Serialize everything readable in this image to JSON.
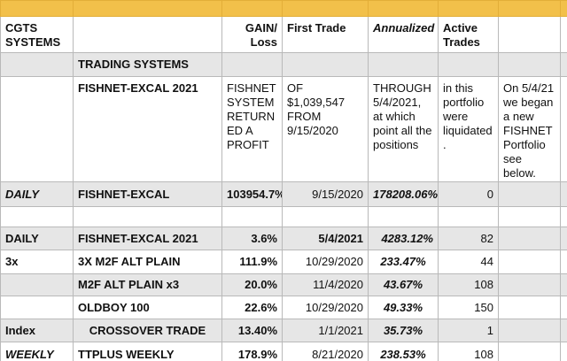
{
  "header": {
    "col_systems": "CGTS SYSTEMS",
    "col_gain": "GAIN/ Loss",
    "col_first_trade": "First Trade",
    "col_annualized": "Annualized",
    "col_active": "Active Trades"
  },
  "section_title": "TRADING SYSTEMS",
  "fishnet_note": {
    "name": "FISHNET-EXCAL 2021",
    "gain": "FISHNET SYSTEM RETURN ED A PROFIT",
    "first_trade": "OF $1,039,547 FROM 9/15/2020",
    "annualized": "THROUGH 5/4/2021, at which point all the positions",
    "active": "in this portfolio were liquidated .",
    "extra": "On 5/4/21 we began a new FISHNET Portfolio see below."
  },
  "rows": [
    {
      "category": "DAILY",
      "system": "FISHNET-EXCAL",
      "gain": "103954.7%",
      "first_trade": "9/15/2020",
      "annualized": "178208.06%",
      "active": "0"
    },
    {
      "category": "DAILY",
      "system": "FISHNET-EXCAL 2021",
      "gain": "3.6%",
      "first_trade": "5/4/2021",
      "annualized": "4283.12%",
      "active": "82"
    },
    {
      "category": "3x",
      "system": "3X M2F ALT PLAIN",
      "gain": "111.9%",
      "first_trade": "10/29/2020",
      "annualized": "233.47%",
      "active": "44"
    },
    {
      "category": "",
      "system": "M2F ALT PLAIN x3",
      "gain": "20.0%",
      "first_trade": "11/4/2020",
      "annualized": "43.67%",
      "active": "108"
    },
    {
      "category": "",
      "system": "OLDBOY 100",
      "gain": "22.6%",
      "first_trade": "10/29/2020",
      "annualized": "49.33%",
      "active": "150"
    },
    {
      "category": "Index",
      "system": "CROSSOVER TRADE",
      "gain": "13.40%",
      "first_trade": "1/1/2021",
      "annualized": "35.73%",
      "active": "1"
    },
    {
      "category": "WEEKLY",
      "system": "TTPLUS WEEKLY",
      "gain": "178.9%",
      "first_trade": "8/21/2020",
      "annualized": "238.53%",
      "active": "108"
    }
  ]
}
